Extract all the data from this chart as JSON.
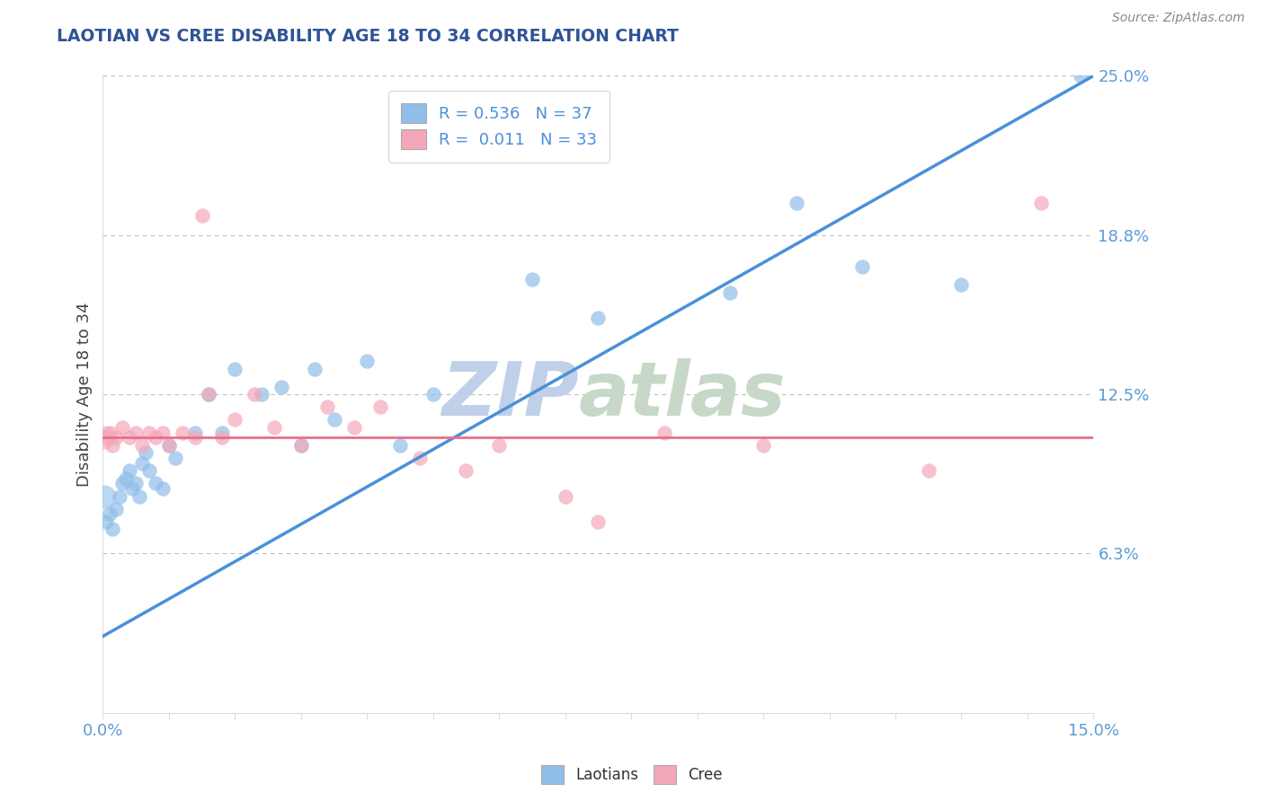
{
  "title": "LAOTIAN VS CREE DISABILITY AGE 18 TO 34 CORRELATION CHART",
  "source": "Source: ZipAtlas.com",
  "ylabel": "Disability Age 18 to 34",
  "xlim": [
    0.0,
    15.0
  ],
  "ylim": [
    0.0,
    25.0
  ],
  "blue_r": "0.536",
  "blue_n": "37",
  "pink_r": "0.011",
  "pink_n": "33",
  "blue_color": "#90BEE8",
  "pink_color": "#F4A7B9",
  "blue_line_color": "#4A90D9",
  "pink_line_color": "#E8708A",
  "watermark": "ZIPatlas",
  "watermark_color": "#C8D8EE",
  "background_color": "#FFFFFF",
  "grid_color": "#BBBBBB",
  "title_color": "#2F5496",
  "label_color": "#5B9BD5",
  "source_color": "#888888",
  "laotian_x": [
    0.05,
    0.1,
    0.15,
    0.2,
    0.25,
    0.3,
    0.35,
    0.4,
    0.45,
    0.5,
    0.55,
    0.6,
    0.65,
    0.7,
    0.8,
    0.9,
    1.0,
    1.1,
    1.4,
    1.6,
    1.8,
    2.0,
    2.4,
    2.7,
    3.0,
    3.2,
    3.5,
    4.0,
    4.5,
    5.0,
    6.5,
    7.5,
    9.5,
    10.5,
    11.5,
    13.0,
    14.8
  ],
  "laotian_y": [
    7.5,
    7.8,
    7.2,
    8.0,
    8.5,
    9.0,
    9.2,
    9.5,
    8.8,
    9.0,
    8.5,
    9.8,
    10.2,
    9.5,
    9.0,
    8.8,
    10.5,
    10.0,
    11.0,
    12.5,
    11.0,
    13.5,
    12.5,
    12.8,
    10.5,
    13.5,
    11.5,
    13.8,
    10.5,
    12.5,
    17.0,
    15.5,
    16.5,
    20.0,
    17.5,
    16.8,
    25.0
  ],
  "cree_x": [
    0.05,
    0.1,
    0.15,
    0.2,
    0.3,
    0.4,
    0.5,
    0.6,
    0.7,
    0.8,
    0.9,
    1.0,
    1.2,
    1.4,
    1.5,
    1.6,
    1.8,
    2.0,
    2.3,
    2.6,
    3.0,
    3.4,
    3.8,
    4.2,
    4.8,
    5.5,
    6.0,
    7.0,
    7.5,
    8.5,
    10.0,
    12.5,
    14.2
  ],
  "cree_y": [
    10.8,
    11.0,
    10.5,
    10.8,
    11.2,
    10.8,
    11.0,
    10.5,
    11.0,
    10.8,
    11.0,
    10.5,
    11.0,
    10.8,
    19.5,
    12.5,
    10.8,
    11.5,
    12.5,
    11.2,
    10.5,
    12.0,
    11.2,
    12.0,
    10.0,
    9.5,
    10.5,
    8.5,
    7.5,
    11.0,
    10.5,
    9.5,
    20.0
  ],
  "blue_line_x": [
    0.0,
    15.0
  ],
  "blue_line_y": [
    3.0,
    25.0
  ],
  "pink_line_x": [
    0.0,
    15.0
  ],
  "pink_line_y": [
    10.8,
    10.8
  ]
}
